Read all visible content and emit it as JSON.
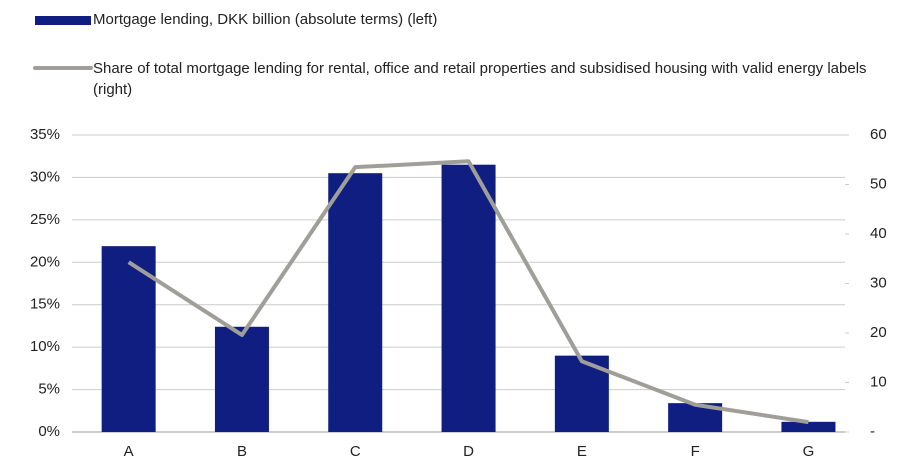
{
  "chart_data": {
    "type": "bar-line",
    "categories": [
      "A",
      "B",
      "C",
      "D",
      "E",
      "F",
      "G"
    ],
    "series": [
      {
        "name": "Mortgage lending, DKK billion (absolute terms) (left)",
        "color": "#0f1e80",
        "type": "bar",
        "axis": "y",
        "values": [
          21.9,
          12.4,
          30.5,
          31.5,
          9.0,
          3.4,
          1.2
        ]
      },
      {
        "name": "Share of total mortgage lending for rental, office and retail properties and subsidised housing with valid energy labels (right)",
        "color": "#a09e99",
        "type": "line",
        "axis": "y2",
        "values": [
          34.3,
          19.6,
          53.5,
          54.7,
          14.3,
          5.5,
          2.0
        ]
      }
    ],
    "ylim": [
      0,
      35
    ],
    "yticks": [
      {
        "value": 0,
        "label": "0%"
      },
      {
        "value": 5,
        "label": "5%"
      },
      {
        "value": 10,
        "label": "10%"
      },
      {
        "value": 15,
        "label": "15%"
      },
      {
        "value": 20,
        "label": "20%"
      },
      {
        "value": 25,
        "label": "25%"
      },
      {
        "value": 30,
        "label": "30%"
      },
      {
        "value": 35,
        "label": "35%"
      }
    ],
    "y2lim": [
      0,
      60
    ],
    "y2ticks": [
      {
        "value": 0,
        "label": "-"
      },
      10,
      20,
      30,
      40,
      50,
      60
    ],
    "grid": true
  }
}
